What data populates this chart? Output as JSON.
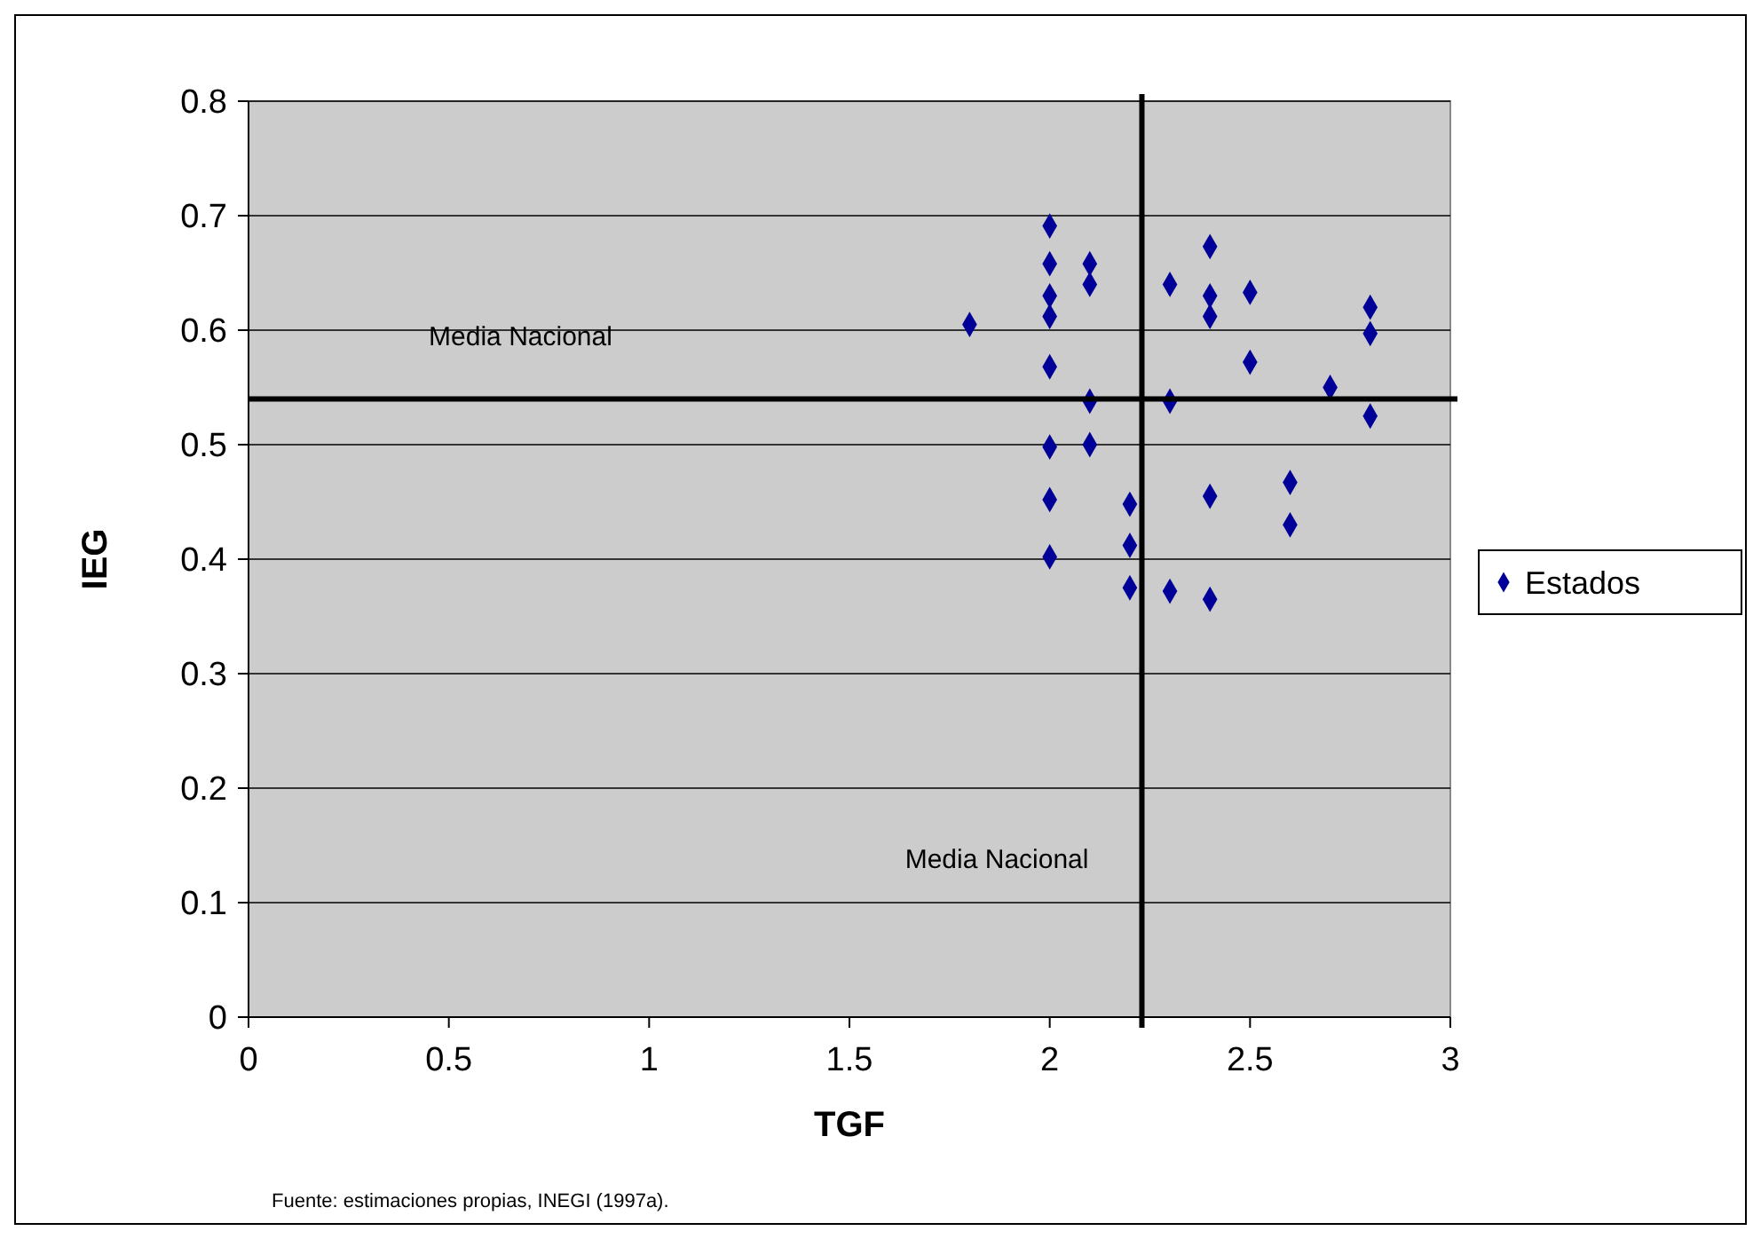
{
  "chart_data": {
    "type": "scatter",
    "xlabel": "TGF",
    "ylabel": "IEG",
    "xlim": [
      0,
      3
    ],
    "xticks": [
      0,
      0.5,
      1,
      1.5,
      2,
      2.5,
      3
    ],
    "ylim": [
      0,
      0.8
    ],
    "yticks": [
      0,
      0.1,
      0.2,
      0.3,
      0.4,
      0.5,
      0.6,
      0.7,
      0.8
    ],
    "grid": "y",
    "legend": "right",
    "marker": "diamond",
    "series": [
      {
        "name": "Estados",
        "color": "#000099",
        "x": [
          1.8,
          2,
          2,
          2,
          2,
          2,
          2,
          2,
          2,
          2.1,
          2.1,
          2.1,
          2.1,
          2.2,
          2.2,
          2.2,
          2.3,
          2.3,
          2.3,
          2.4,
          2.4,
          2.4,
          2.4,
          2.4,
          2.5,
          2.5,
          2.6,
          2.6,
          2.7,
          2.8,
          2.8,
          2.8
        ],
        "values": [
          0.605,
          0.691,
          0.658,
          0.63,
          0.612,
          0.568,
          0.498,
          0.452,
          0.402,
          0.658,
          0.64,
          0.538,
          0.5,
          0.448,
          0.412,
          0.375,
          0.64,
          0.538,
          0.372,
          0.673,
          0.63,
          0.612,
          0.455,
          0.365,
          0.633,
          0.572,
          0.467,
          0.43,
          0.55,
          0.62,
          0.597,
          0.525
        ]
      }
    ],
    "ref_lines": [
      {
        "axis": "y",
        "value": 0.54,
        "label": "Media Nacional",
        "color": "#000000"
      },
      {
        "axis": "x",
        "value": 2.23,
        "label": "Media Nacional",
        "color": "#000000"
      }
    ],
    "annotations": [
      "Fuente: estimaciones propias, INEGI (1997a)."
    ]
  }
}
